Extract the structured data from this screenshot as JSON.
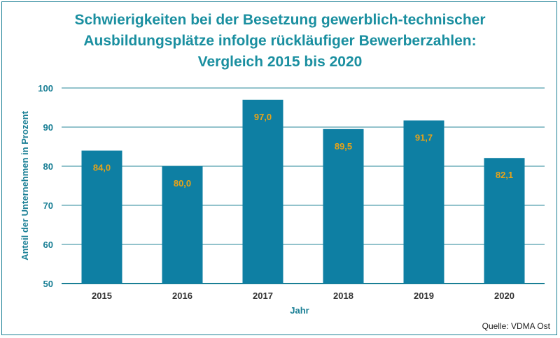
{
  "chart_data": {
    "type": "bar",
    "title": [
      "Schwierigkeiten bei der Besetzung gewerblich-technischer",
      "Ausbildungsplätze infolge rückläufiger Bewerberzahlen:",
      "Vergleich 2015 bis 2020"
    ],
    "categories": [
      "2015",
      "2016",
      "2017",
      "2018",
      "2019",
      "2020"
    ],
    "values": [
      84.0,
      80.0,
      97.0,
      89.5,
      91.7,
      82.1
    ],
    "data_labels": [
      "84,0",
      "80,0",
      "97,0",
      "89,5",
      "91,7",
      "82,1"
    ],
    "xlabel": "Jahr",
    "ylabel": "Anteil der Unternehmen in Prozent",
    "ylim": [
      50,
      100
    ],
    "yticks": [
      50,
      60,
      70,
      80,
      90,
      100
    ],
    "grid": true,
    "colors": {
      "bar": "#0e7fa3",
      "label": "#e8a317",
      "text": "#1a7f95",
      "grid": "#1a7f95"
    }
  },
  "source": "Quelle: VDMA Ost"
}
